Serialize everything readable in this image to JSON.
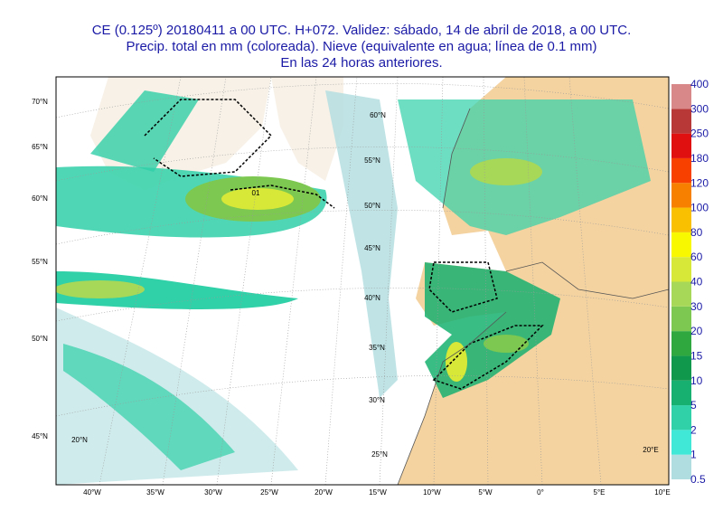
{
  "header": {
    "lines": [
      "CE (0.125º) 20180411 a 00 UTC.  H+072. Validez: sábado, 14 de abril de 2018,  a 00 UTC.",
      "Precip. total en mm (coloreada). Nieve (equivalente en agua; línea de 0.1 mm)",
      "En las 24 horas anteriores."
    ]
  },
  "colorbar": {
    "levels": [
      0.5,
      1,
      2,
      5,
      10,
      15,
      20,
      30,
      40,
      60,
      80,
      100,
      120,
      180,
      250,
      300,
      400
    ],
    "colors": [
      "#b0dde0",
      "#40e8d8",
      "#30d0a8",
      "#18b070",
      "#10984c",
      "#30a840",
      "#7cc850",
      "#a8d858",
      "#d8e838",
      "#f8f800",
      "#f8c000",
      "#f88000",
      "#f84000",
      "#e01010",
      "#b83838",
      "#d88888"
    ]
  },
  "map": {
    "lon_labels": [
      "40°W",
      "35°W",
      "30°W",
      "25°W",
      "20°W",
      "15°W",
      "10°W",
      "5°W",
      "0°",
      "5°E",
      "10°E"
    ],
    "lat_labels": [
      "70°N",
      "65°N",
      "60°N",
      "55°N",
      "50°N",
      "45°N"
    ],
    "inner_labels": [
      "60°N",
      "55°N",
      "50°N",
      "45°N",
      "40°N",
      "35°N",
      "30°N",
      "25°N",
      "20°N",
      "20°E"
    ],
    "contour_label": "01"
  }
}
